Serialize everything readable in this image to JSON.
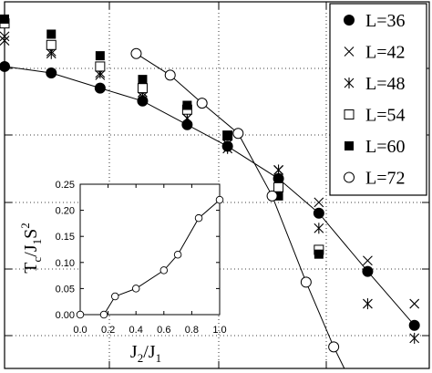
{
  "chart_data": [
    {
      "type": "scatter",
      "role": "main",
      "title": "",
      "xlabel": "",
      "ylabel": "",
      "grid": true,
      "legend_position": "top-right",
      "series": [
        {
          "name": "L=36",
          "marker": "filled-circle",
          "x": [
            0.0,
            0.22,
            0.45,
            0.65,
            0.86,
            1.05,
            1.29,
            1.48,
            1.71,
            1.93
          ],
          "y": [
            6.4,
            6.37,
            6.3,
            6.24,
            6.13,
            6.03,
            5.88,
            5.72,
            5.45,
            5.2
          ]
        },
        {
          "name": "L=42",
          "marker": "x",
          "x": [
            0.0,
            0.22,
            0.45,
            0.65,
            0.86,
            1.05,
            1.29,
            1.48,
            1.71,
            1.93
          ],
          "y": [
            6.54,
            6.47,
            6.36,
            6.26,
            6.16,
            6.04,
            5.92,
            5.77,
            5.5,
            5.3
          ]
        },
        {
          "name": "L=48",
          "marker": "asterisk",
          "x": [
            0.0,
            0.22,
            0.45,
            0.65,
            0.86,
            1.05,
            1.29,
            1.48,
            1.71,
            1.93
          ],
          "y": [
            6.52,
            6.46,
            6.37,
            6.28,
            6.16,
            6.02,
            5.92,
            5.65,
            5.3,
            5.14
          ]
        },
        {
          "name": "L=54",
          "marker": "open-square",
          "x": [
            0.0,
            0.22,
            0.45,
            0.65,
            0.86,
            1.05,
            1.29,
            1.48
          ],
          "y": [
            6.6,
            6.5,
            6.4,
            6.3,
            6.2,
            6.08,
            5.84,
            5.55
          ]
        },
        {
          "name": "L=60",
          "marker": "filled-square",
          "x": [
            0.0,
            0.22,
            0.45,
            0.65,
            0.86,
            1.05,
            1.29,
            1.48
          ],
          "y": [
            6.62,
            6.55,
            6.45,
            6.34,
            6.22,
            6.08,
            5.8,
            5.53
          ]
        },
        {
          "name": "L=72",
          "marker": "open-circle",
          "x": [
            0.62,
            0.78,
            0.93,
            1.1,
            1.26,
            1.42,
            1.55
          ],
          "y": [
            6.46,
            6.36,
            6.23,
            6.09,
            5.8,
            5.4,
            5.1
          ]
        }
      ],
      "lines": [
        {
          "name": "L=36-curve",
          "x": [
            0.0,
            0.22,
            0.45,
            0.65,
            0.86,
            1.05,
            1.29,
            1.48,
            1.71,
            1.93
          ],
          "y": [
            6.4,
            6.37,
            6.3,
            6.24,
            6.13,
            6.03,
            5.88,
            5.72,
            5.45,
            5.2
          ]
        },
        {
          "name": "L=72-curve",
          "x": [
            0.62,
            0.78,
            0.93,
            1.1,
            1.26,
            1.42,
            1.55,
            1.6
          ],
          "y": [
            6.46,
            6.36,
            6.23,
            6.09,
            5.8,
            5.4,
            5.1,
            5.0
          ]
        }
      ],
      "xlim": [
        0.0,
        2.0
      ],
      "ylim": [
        5.0,
        6.7
      ]
    },
    {
      "type": "line",
      "role": "inset",
      "title": "",
      "xlabel": "J",
      "xlabel_sub_1": "2",
      "xlabel_slash": "/J",
      "xlabel_sub_2": "1",
      "ylabel": "T",
      "ylabel_sub_1": "c",
      "ylabel_slash": "/J",
      "ylabel_sub_2": "1",
      "ylabel_tail": "S",
      "ylabel_sup": "2",
      "x": [
        0.0,
        0.17,
        0.25,
        0.4,
        0.6,
        0.7,
        0.85,
        1.0
      ],
      "y": [
        0.0,
        0.0,
        0.035,
        0.05,
        0.085,
        0.115,
        0.185,
        0.22
      ],
      "xlim": [
        0.0,
        1.0
      ],
      "ylim": [
        0.0,
        0.25
      ],
      "xticks": [
        "0.0",
        "0.2",
        "0.4",
        "0.6",
        "0.8",
        "1.0"
      ],
      "yticks": [
        "0.00",
        "0.05",
        "0.10",
        "0.15",
        "0.20",
        "0.25"
      ]
    }
  ]
}
